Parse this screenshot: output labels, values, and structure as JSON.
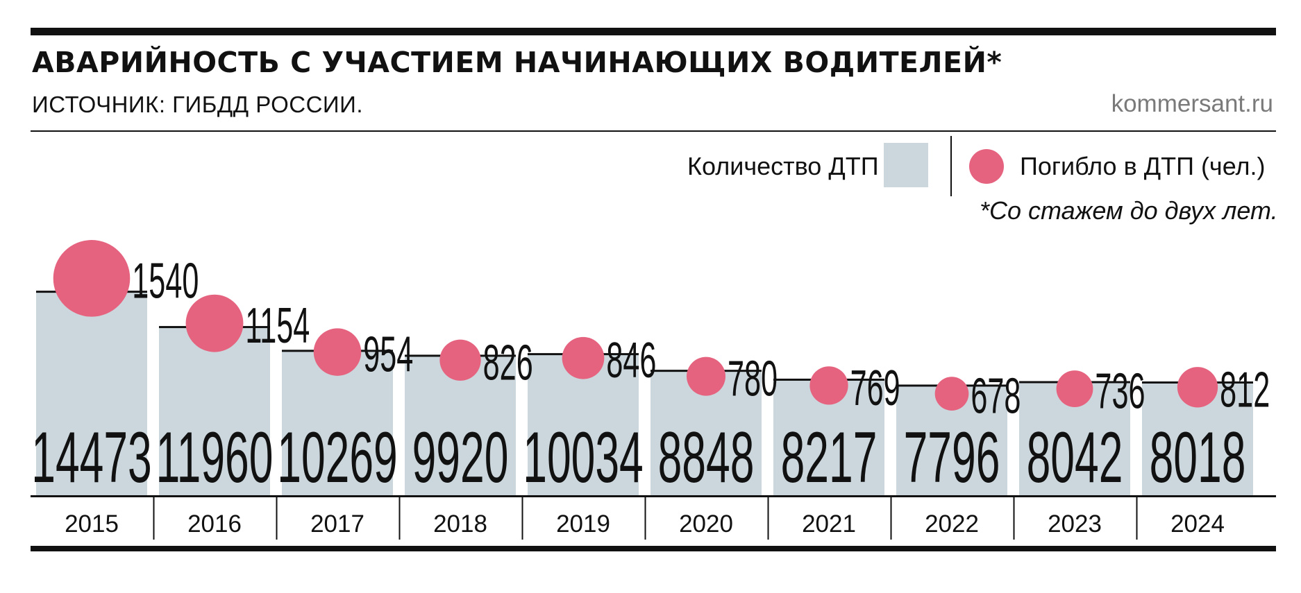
{
  "title": "АВАРИЙНОСТЬ С УЧАСТИЕМ НАЧИНАЮЩИХ ВОДИТЕЛЕЙ*",
  "source": "ИСТОЧНИК: ГИБДД РОССИИ.",
  "site": "kommersant.ru",
  "footnote": "*Со стажем до двух лет.",
  "colors": {
    "bars": "#cbd7dc",
    "circles": "#e5637f",
    "rules": "#111111"
  },
  "chart_data": {
    "type": "bar",
    "categories": [
      "2015",
      "2016",
      "2017",
      "2018",
      "2019",
      "2020",
      "2021",
      "2022",
      "2023",
      "2024"
    ],
    "series": [
      {
        "name": "Количество ДТП",
        "type": "bar",
        "values": [
          14473,
          11960,
          10269,
          9920,
          10034,
          8848,
          8217,
          7796,
          8042,
          8018
        ]
      },
      {
        "name": "Погибло в ДТП (чел.)",
        "type": "bubble",
        "values": [
          1540,
          1154,
          954,
          826,
          846,
          780,
          769,
          678,
          736,
          812
        ]
      }
    ],
    "title": "АВАРИЙНОСТЬ С УЧАСТИЕМ НАЧИНАЮЩИХ ВОДИТЕЛЕЙ*",
    "legend": "top-right",
    "grid": false,
    "ylim": [
      0,
      18500
    ]
  }
}
